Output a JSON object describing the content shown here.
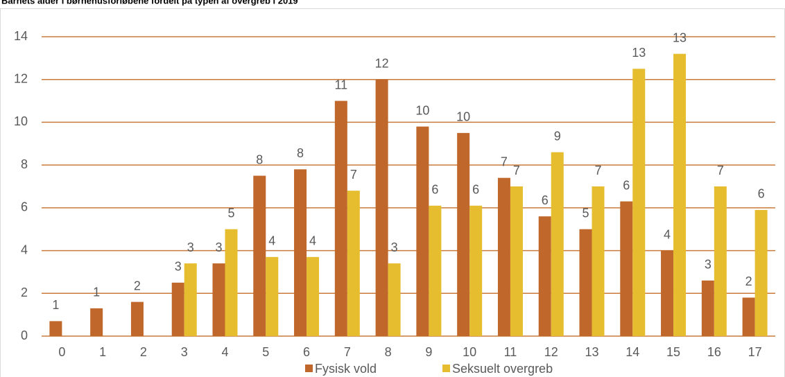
{
  "chart_data": {
    "type": "bar",
    "title": "Barnets alder i børnehusforløbene fordelt på typen af overgreb i 2019",
    "categories": [
      "0",
      "1",
      "2",
      "3",
      "4",
      "5",
      "6",
      "7",
      "8",
      "9",
      "10",
      "11",
      "12",
      "13",
      "14",
      "15",
      "16",
      "17"
    ],
    "series": [
      {
        "name": "Fysisk vold",
        "color": "#c0672b",
        "values": [
          0.7,
          1.3,
          1.6,
          2.5,
          3.4,
          7.5,
          7.8,
          11,
          12,
          9.8,
          9.5,
          7.4,
          5.6,
          5,
          6.3,
          4,
          2.6,
          1.8
        ],
        "value_labels": [
          "1",
          "1",
          "2",
          "3",
          "3",
          "8",
          "8",
          "11",
          "12",
          "10",
          "10",
          "7",
          "6",
          "5",
          "6",
          "4",
          "3",
          "2"
        ]
      },
      {
        "name": "Seksuelt overgreb",
        "color": "#e6bd2f",
        "values": [
          null,
          null,
          null,
          3.4,
          5,
          3.7,
          3.7,
          6.8,
          3.4,
          6.1,
          6.1,
          7,
          8.6,
          7,
          12.5,
          13.2,
          7,
          5.9
        ],
        "value_labels": [
          null,
          null,
          null,
          "3",
          "5",
          "4",
          "4",
          "7",
          "3",
          "6",
          "6",
          "7",
          "9",
          "7",
          "13",
          "13",
          "7",
          "6"
        ]
      }
    ],
    "ylim": [
      0,
      14
    ],
    "yticks": [
      0,
      2,
      4,
      6,
      8,
      10,
      12,
      14
    ],
    "grid": true,
    "legend": "bottom"
  }
}
